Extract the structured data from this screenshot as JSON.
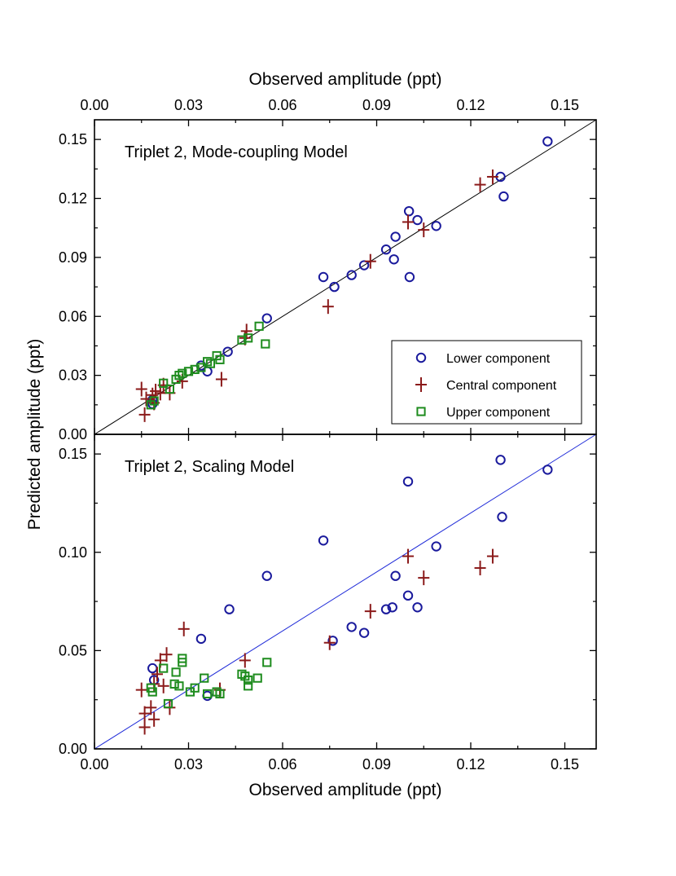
{
  "chart_data": [
    {
      "type": "scatter",
      "title": "Triplet 2, Mode-coupling Model",
      "xlabel": "Observed amplitude (ppt)",
      "ylabel": "Predicted amplitude (ppt)",
      "xlim": [
        0,
        0.16
      ],
      "ylim": [
        0,
        0.16
      ],
      "x_ticks": [
        "0.00",
        "0.03",
        "0.06",
        "0.09",
        "0.12",
        "0.15"
      ],
      "y_ticks": [
        "0.00",
        "0.03",
        "0.06",
        "0.09",
        "0.12",
        "0.15"
      ],
      "reference_line": "y = x",
      "legend_position": "bottom-right",
      "series": [
        {
          "name": "Lower component",
          "marker": "circle",
          "color": "#1a1a9c",
          "points": [
            [
              0.0185,
              0.0175
            ],
            [
              0.0185,
              0.0155
            ],
            [
              0.034,
              0.035
            ],
            [
              0.036,
              0.032
            ],
            [
              0.0425,
              0.042
            ],
            [
              0.055,
              0.059
            ],
            [
              0.073,
              0.08
            ],
            [
              0.0765,
              0.075
            ],
            [
              0.082,
              0.081
            ],
            [
              0.086,
              0.086
            ],
            [
              0.093,
              0.094
            ],
            [
              0.0955,
              0.089
            ],
            [
              0.096,
              0.1005
            ],
            [
              0.1003,
              0.1135
            ],
            [
              0.1005,
              0.08
            ],
            [
              0.103,
              0.109
            ],
            [
              0.109,
              0.106
            ],
            [
              0.1295,
              0.131
            ],
            [
              0.1305,
              0.121
            ],
            [
              0.1445,
              0.149
            ]
          ]
        },
        {
          "name": "Central component",
          "marker": "plus",
          "color": "#8b1a1a",
          "points": [
            [
              0.015,
              0.023
            ],
            [
              0.016,
              0.01
            ],
            [
              0.0165,
              0.018
            ],
            [
              0.0185,
              0.02
            ],
            [
              0.019,
              0.016
            ],
            [
              0.0195,
              0.022
            ],
            [
              0.021,
              0.021
            ],
            [
              0.022,
              0.025
            ],
            [
              0.024,
              0.021
            ],
            [
              0.028,
              0.027
            ],
            [
              0.0405,
              0.028
            ],
            [
              0.048,
              0.049
            ],
            [
              0.0485,
              0.0525
            ],
            [
              0.0745,
              0.065
            ],
            [
              0.088,
              0.088
            ],
            [
              0.1,
              0.108
            ],
            [
              0.105,
              0.104
            ],
            [
              0.123,
              0.127
            ],
            [
              0.127,
              0.131
            ]
          ]
        },
        {
          "name": "Upper component",
          "marker": "square",
          "color": "#1e8c1e",
          "points": [
            [
              0.018,
              0.015
            ],
            [
              0.019,
              0.017
            ],
            [
              0.022,
              0.026
            ],
            [
              0.024,
              0.023
            ],
            [
              0.026,
              0.028
            ],
            [
              0.027,
              0.03
            ],
            [
              0.028,
              0.031
            ],
            [
              0.03,
              0.032
            ],
            [
              0.032,
              0.033
            ],
            [
              0.034,
              0.034
            ],
            [
              0.036,
              0.037
            ],
            [
              0.037,
              0.036
            ],
            [
              0.039,
              0.04
            ],
            [
              0.04,
              0.038
            ],
            [
              0.047,
              0.048
            ],
            [
              0.049,
              0.049
            ],
            [
              0.0525,
              0.055
            ],
            [
              0.0545,
              0.046
            ]
          ]
        }
      ]
    },
    {
      "type": "scatter",
      "title": "Triplet 2, Scaling Model",
      "xlabel": "Observed amplitude (ppt)",
      "ylabel": "Predicted amplitude (ppt)",
      "xlim": [
        0,
        0.16
      ],
      "ylim": [
        0,
        0.16
      ],
      "x_ticks": [
        "0.00",
        "0.03",
        "0.06",
        "0.09",
        "0.12",
        "0.15"
      ],
      "y_ticks": [
        "0.00",
        "0.05",
        "0.10",
        "0.15"
      ],
      "reference_line": "y = x",
      "series": [
        {
          "name": "Lower component",
          "marker": "circle",
          "color": "#1a1a9c",
          "points": [
            [
              0.0185,
              0.041
            ],
            [
              0.019,
              0.035
            ],
            [
              0.034,
              0.056
            ],
            [
              0.036,
              0.027
            ],
            [
              0.043,
              0.071
            ],
            [
              0.055,
              0.088
            ],
            [
              0.073,
              0.106
            ],
            [
              0.076,
              0.055
            ],
            [
              0.082,
              0.062
            ],
            [
              0.086,
              0.059
            ],
            [
              0.093,
              0.071
            ],
            [
              0.095,
              0.072
            ],
            [
              0.096,
              0.088
            ],
            [
              0.1,
              0.078
            ],
            [
              0.1,
              0.136
            ],
            [
              0.103,
              0.072
            ],
            [
              0.109,
              0.103
            ],
            [
              0.1295,
              0.147
            ],
            [
              0.13,
              0.118
            ],
            [
              0.1445,
              0.142
            ]
          ]
        },
        {
          "name": "Central component",
          "marker": "plus",
          "color": "#8b1a1a",
          "points": [
            [
              0.015,
              0.03
            ],
            [
              0.016,
              0.018
            ],
            [
              0.016,
              0.011
            ],
            [
              0.018,
              0.021
            ],
            [
              0.019,
              0.015
            ],
            [
              0.019,
              0.033
            ],
            [
              0.02,
              0.038
            ],
            [
              0.021,
              0.045
            ],
            [
              0.022,
              0.032
            ],
            [
              0.023,
              0.048
            ],
            [
              0.024,
              0.021
            ],
            [
              0.0285,
              0.061
            ],
            [
              0.04,
              0.03
            ],
            [
              0.048,
              0.045
            ],
            [
              0.075,
              0.054
            ],
            [
              0.088,
              0.07
            ],
            [
              0.1,
              0.098
            ],
            [
              0.105,
              0.087
            ],
            [
              0.123,
              0.092
            ],
            [
              0.127,
              0.098
            ]
          ]
        },
        {
          "name": "Upper component",
          "marker": "square",
          "color": "#1e8c1e",
          "points": [
            [
              0.018,
              0.031
            ],
            [
              0.0185,
              0.029
            ],
            [
              0.022,
              0.041
            ],
            [
              0.0235,
              0.023
            ],
            [
              0.0255,
              0.033
            ],
            [
              0.026,
              0.039
            ],
            [
              0.027,
              0.032
            ],
            [
              0.028,
              0.046
            ],
            [
              0.028,
              0.044
            ],
            [
              0.0305,
              0.029
            ],
            [
              0.032,
              0.031
            ],
            [
              0.035,
              0.036
            ],
            [
              0.036,
              0.028
            ],
            [
              0.039,
              0.029
            ],
            [
              0.04,
              0.028
            ],
            [
              0.047,
              0.038
            ],
            [
              0.048,
              0.037
            ],
            [
              0.049,
              0.035
            ],
            [
              0.049,
              0.032
            ],
            [
              0.052,
              0.036
            ],
            [
              0.055,
              0.044
            ]
          ]
        }
      ]
    }
  ]
}
